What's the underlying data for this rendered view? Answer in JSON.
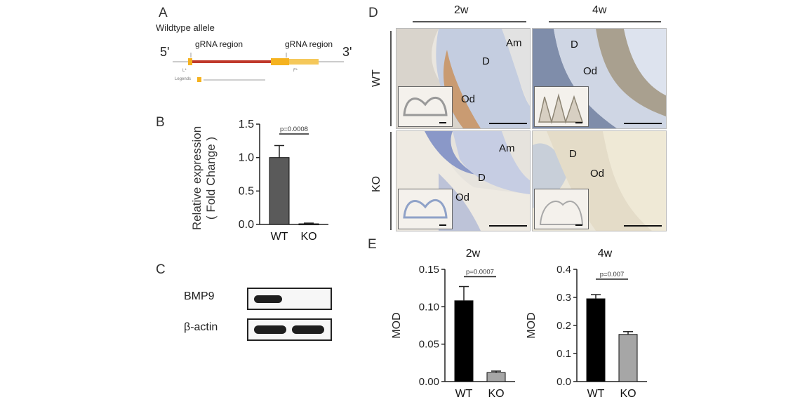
{
  "panels": {
    "A": "A",
    "B": "B",
    "C": "C",
    "D": "D",
    "E": "E"
  },
  "panel_a": {
    "title": "Wildtype allele",
    "five_prime": "5'",
    "three_prime": "3'",
    "grna_left": "gRNA region",
    "grna_right": "gRNA region",
    "legend_label": "Legends"
  },
  "panel_c": {
    "bmp9": "BMP9",
    "actin": "β-actin"
  },
  "panel_d": {
    "col_2w": "2w",
    "col_4w": "4w",
    "row_wt": "WT",
    "row_ko": "KO",
    "wt2w": [
      "Am",
      "D",
      "Od"
    ],
    "wt4w": [
      "D",
      "Od"
    ],
    "ko2w": [
      "Am",
      "D",
      "Od"
    ],
    "ko4w": [
      "D",
      "Od"
    ]
  },
  "colors": {
    "bar_dark": "#5a5a5a",
    "bar_black": "#000000",
    "bar_gray": "#a6a6a6",
    "exon": "#f5b21f"
  },
  "chart_data": [
    {
      "id": "B",
      "type": "bar",
      "title": "",
      "categories": [
        "WT",
        "KO"
      ],
      "values": [
        1.0,
        0.01
      ],
      "errors": [
        0.18,
        0.01
      ],
      "ylabel": "Relative expression",
      "ylabel2": "( Fold Change )",
      "ylim": [
        0,
        1.5
      ],
      "yticks": [
        "0.0",
        "0.5",
        "1.0",
        "1.5"
      ],
      "ytick_values": [
        0,
        0.5,
        1.0,
        1.5
      ],
      "pvalue": "p=0.0008",
      "colors": [
        "#5a5a5a",
        "#5a5a5a"
      ]
    },
    {
      "id": "E1",
      "type": "bar",
      "title": "2w",
      "categories": [
        "WT",
        "KO"
      ],
      "values": [
        0.108,
        0.012
      ],
      "errors": [
        0.019,
        0.002
      ],
      "ylabel": "MOD",
      "ylim": [
        0,
        0.15
      ],
      "yticks": [
        "0.00",
        "0.05",
        "0.10",
        "0.15"
      ],
      "ytick_values": [
        0,
        0.05,
        0.1,
        0.15
      ],
      "pvalue": "p=0.0007",
      "colors": [
        "#000000",
        "#a6a6a6"
      ]
    },
    {
      "id": "E2",
      "type": "bar",
      "title": "4w",
      "categories": [
        "WT",
        "KO"
      ],
      "values": [
        0.295,
        0.168
      ],
      "errors": [
        0.015,
        0.01
      ],
      "ylabel": "MOD",
      "ylim": [
        0,
        0.4
      ],
      "yticks": [
        "0.0",
        "0.1",
        "0.2",
        "0.3",
        "0.4"
      ],
      "ytick_values": [
        0,
        0.1,
        0.2,
        0.3,
        0.4
      ],
      "pvalue": "p=0.007",
      "colors": [
        "#000000",
        "#a6a6a6"
      ]
    }
  ]
}
